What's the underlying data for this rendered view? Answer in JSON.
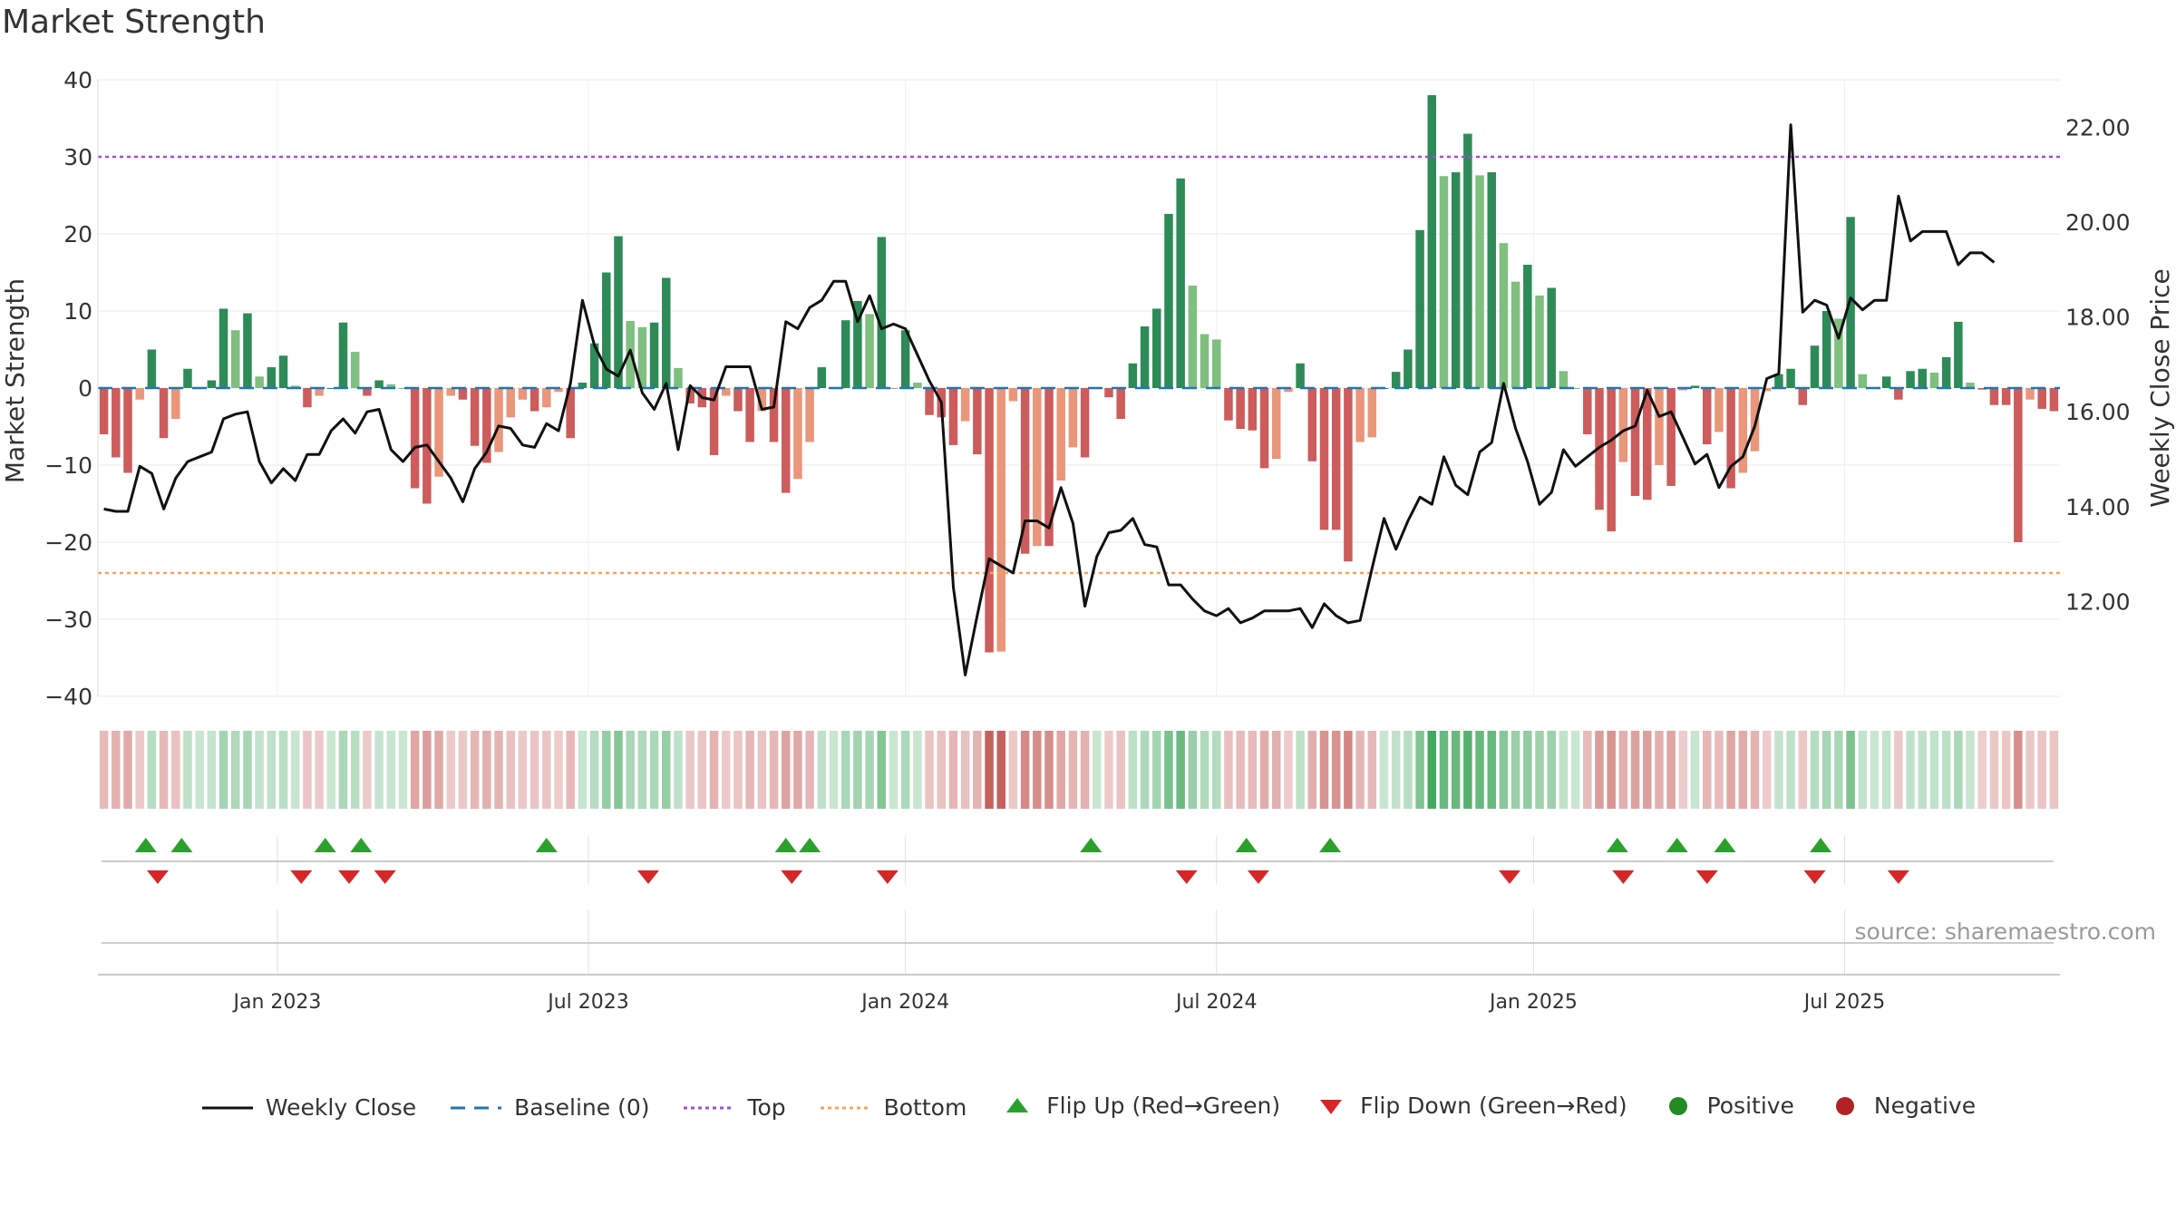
{
  "title": "Market Strength",
  "source": "source: sharemaestro.com",
  "colors": {
    "posStrong": "#2e8b57",
    "posWeak": "#7fbf7f",
    "negStrong": "#cd5c5c",
    "negWeak": "#e9967a",
    "baseline": "#1f77b4",
    "top": "#9d4edd",
    "bottom": "#f4a460",
    "close": "#111111",
    "flipUp": "#2ca02c",
    "flipDown": "#d62728",
    "grid": "#e9e9e9"
  },
  "chart_data": {
    "type": "bar",
    "title": "Market Strength",
    "ylabel": "Market Strength",
    "y2label": "Weekly Close Price",
    "ylim": [
      -40,
      40
    ],
    "y2lim": [
      10,
      23
    ],
    "yticks": [
      "40",
      "30",
      "20",
      "10",
      "0",
      "−10",
      "−20",
      "−30",
      "−40"
    ],
    "y2ticks": [
      "22.00",
      "20.00",
      "18.00",
      "16.00",
      "14.00",
      "12.00"
    ],
    "xticks": [
      {
        "label": "Jan 2023",
        "week": 15
      },
      {
        "label": "Jul 2023",
        "week": 41
      },
      {
        "label": "Jan 2024",
        "week": 67.5
      },
      {
        "label": "Jul 2024",
        "week": 93.5
      },
      {
        "label": "Jan 2025",
        "week": 120
      },
      {
        "label": "Jul 2025",
        "week": 146
      }
    ],
    "top": 30,
    "bottom": -24,
    "strength": [
      -6,
      -9,
      -11,
      -1.5,
      5,
      -6.5,
      -4,
      2.5,
      0,
      1,
      10.3,
      7.5,
      9.7,
      1.5,
      2.7,
      4.2,
      0.3,
      -2.5,
      -1,
      0,
      8.5,
      4.7,
      -1,
      1,
      0.5,
      0,
      -13,
      -15,
      -11.5,
      -1,
      -1.5,
      -7.5,
      -9.7,
      -8.3,
      -3.8,
      -1.5,
      -3,
      -2.5,
      -0.5,
      -6.5,
      0.7,
      5.8,
      15,
      19.7,
      8.7,
      7.9,
      8.5,
      14.3,
      2.6,
      -2,
      -2.5,
      -8.7,
      -1,
      -3,
      -7,
      -3,
      -7,
      -13.6,
      -11.8,
      -7,
      2.7,
      0,
      8.8,
      11.3,
      9.6,
      19.6,
      0,
      7.5,
      0.7,
      -3.5,
      -3.8,
      -7.4,
      -4.3,
      -8.6,
      -34.3,
      -34.2,
      -1.7,
      -21.5,
      -20.5,
      -20.5,
      -12,
      -7.7,
      -9,
      0,
      -1.2,
      -4,
      3.2,
      8,
      10.3,
      22.6,
      27.2,
      13.3,
      7,
      6.3,
      -4.2,
      -5.3,
      -5.5,
      -10.4,
      -9.2,
      -0.5,
      3.2,
      -9.5,
      -18.4,
      -18.4,
      -22.5,
      -7,
      -6.4,
      0,
      2.1,
      5,
      20.5,
      38,
      27.5,
      28,
      33,
      27.6,
      28,
      18.8,
      13.8,
      16,
      12,
      13,
      2.2,
      0,
      -6,
      -15.8,
      -18.6,
      -9.6,
      -14,
      -14.5,
      -10,
      -12.7,
      -0.3,
      0.3,
      -7.3,
      -5.7,
      -13,
      -11,
      -8.2,
      -0.4,
      1.8,
      2.5,
      -2.2,
      5.5,
      10,
      9,
      22.2,
      1.8,
      0,
      1.5,
      -1.5,
      2.2,
      2.5,
      2,
      4,
      8.6,
      0.7,
      -0.2,
      -2.2,
      -2.2,
      -20,
      -1.5,
      -2.7,
      -3
    ],
    "close": [
      13.95,
      13.9,
      13.9,
      14.85,
      14.7,
      13.95,
      14.6,
      14.95,
      15.05,
      15.15,
      15.85,
      15.95,
      16.0,
      14.95,
      14.5,
      14.8,
      14.55,
      15.1,
      15.1,
      15.6,
      15.85,
      15.55,
      16.0,
      16.05,
      15.2,
      14.95,
      15.25,
      15.3,
      14.95,
      14.6,
      14.1,
      14.8,
      15.15,
      15.7,
      15.65,
      15.3,
      15.25,
      15.75,
      15.6,
      16.6,
      18.35,
      17.4,
      16.9,
      16.75,
      17.3,
      16.4,
      16.05,
      16.6,
      15.2,
      16.55,
      16.3,
      16.25,
      16.95,
      16.95,
      16.95,
      16.05,
      16.1,
      17.9,
      17.75,
      18.2,
      18.35,
      18.75,
      18.75,
      17.9,
      18.45,
      17.75,
      17.85,
      17.75,
      17.2,
      16.65,
      16.2,
      12.3,
      10.45,
      11.7,
      12.9,
      12.75,
      12.6,
      13.7,
      13.7,
      13.55,
      14.4,
      13.65,
      11.9,
      12.95,
      13.45,
      13.5,
      13.75,
      13.2,
      13.15,
      12.35,
      12.35,
      12.05,
      11.8,
      11.7,
      11.85,
      11.55,
      11.65,
      11.8,
      11.8,
      11.8,
      11.85,
      11.45,
      11.95,
      11.7,
      11.55,
      11.6,
      12.7,
      13.75,
      13.1,
      13.7,
      14.2,
      14.05,
      15.05,
      14.45,
      14.25,
      15.15,
      15.35,
      16.6,
      15.65,
      14.95,
      14.05,
      14.3,
      15.2,
      14.85,
      15.05,
      15.25,
      15.4,
      15.6,
      15.7,
      16.45,
      15.9,
      16.0,
      15.45,
      14.9,
      15.1,
      14.4,
      14.85,
      15.05,
      15.7,
      16.7,
      16.8,
      22.05,
      18.1,
      18.35,
      18.25,
      17.55,
      18.4,
      18.15,
      18.35,
      18.35,
      20.55,
      19.6,
      19.8,
      19.8,
      19.8,
      19.1,
      19.35,
      19.35,
      19.15
    ],
    "flip_up_weeks": [
      4,
      7,
      19,
      22,
      37.5,
      57.5,
      59.5,
      83,
      96,
      103,
      127,
      132,
      136,
      144
    ],
    "flip_down_weeks": [
      5,
      17,
      21,
      24,
      46,
      58,
      66,
      91,
      97,
      118,
      127.5,
      134.5,
      143.5,
      150.5
    ]
  },
  "legend": [
    {
      "label": "Weekly Close",
      "icon": "close-line-icon"
    },
    {
      "label": "Baseline (0)",
      "icon": "baseline-dash-icon"
    },
    {
      "label": "Top",
      "icon": "top-dot-icon"
    },
    {
      "label": "Bottom",
      "icon": "bottom-dot-icon"
    },
    {
      "label": "Flip Up (Red→Green)",
      "icon": "triangle-up-icon"
    },
    {
      "label": "Flip Down (Green→Red)",
      "icon": "triangle-down-icon"
    },
    {
      "label": "Positive",
      "icon": "green-circle-icon"
    },
    {
      "label": "Negative",
      "icon": "red-circle-icon"
    }
  ]
}
